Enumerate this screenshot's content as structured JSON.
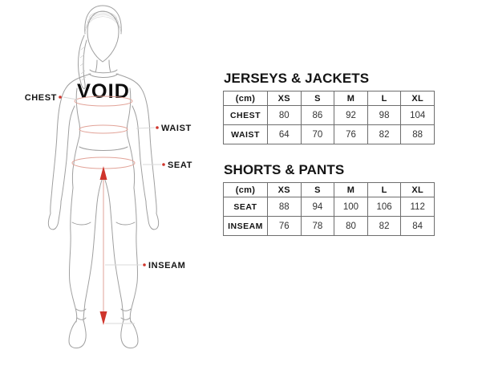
{
  "figure": {
    "brand_logo": "VOID",
    "labels": {
      "chest": "CHEST",
      "waist": "WAIST",
      "seat": "SEAT",
      "inseam": "INSEAM"
    }
  },
  "tables": [
    {
      "title": "JERSEYS & JACKETS",
      "unit_header": "(cm)",
      "columns": [
        "XS",
        "S",
        "M",
        "L",
        "XL"
      ],
      "rows": [
        {
          "label": "CHEST",
          "values": [
            80,
            86,
            92,
            98,
            104
          ]
        },
        {
          "label": "WAIST",
          "values": [
            64,
            70,
            76,
            82,
            88
          ]
        }
      ]
    },
    {
      "title": "SHORTS & PANTS",
      "unit_header": "(cm)",
      "columns": [
        "XS",
        "S",
        "M",
        "L",
        "XL"
      ],
      "rows": [
        {
          "label": "SEAT",
          "values": [
            88,
            94,
            100,
            106,
            112
          ]
        },
        {
          "label": "INSEAM",
          "values": [
            76,
            78,
            80,
            82,
            84
          ]
        }
      ]
    }
  ],
  "colors": {
    "outline": "#9f9f9f",
    "measure_line": "#e2a398",
    "accent_red": "#cf352c",
    "text": "#141414",
    "table_border": "#6e6e6e"
  }
}
